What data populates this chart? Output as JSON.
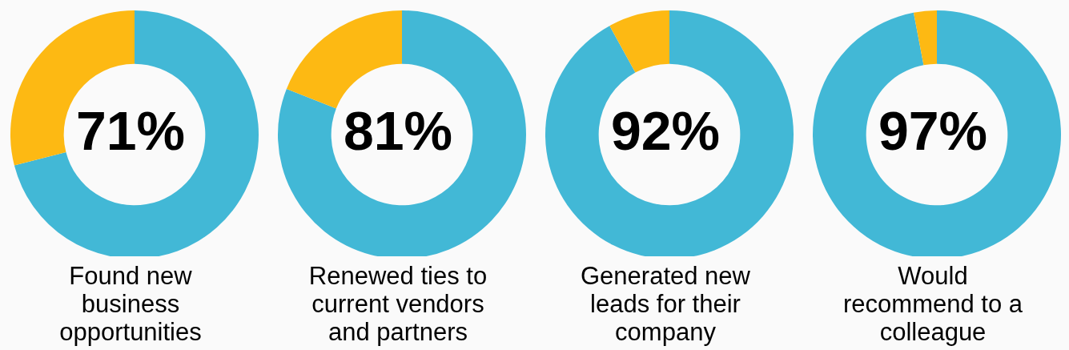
{
  "chart_data": [
    {
      "type": "donut",
      "title": "Found new business opportunities",
      "categories": [
        null,
        null
      ],
      "values": [
        71,
        29
      ],
      "colors": [
        "#42b8d6",
        "#fdb913"
      ],
      "annotations": [
        "71%"
      ]
    },
    {
      "type": "donut",
      "title": "Renewed ties to current vendors and partners",
      "categories": [
        null,
        null
      ],
      "values": [
        81,
        19
      ],
      "colors": [
        "#42b8d6",
        "#fdb913"
      ],
      "annotations": [
        "81%"
      ]
    },
    {
      "type": "donut",
      "title": "Generated new leads for their company",
      "categories": [
        null,
        null
      ],
      "values": [
        92,
        8
      ],
      "colors": [
        "#42b8d6",
        "#fdb913"
      ],
      "annotations": [
        "92%"
      ]
    },
    {
      "type": "donut",
      "title": "Would recommend to a colleague",
      "categories": [
        null,
        null
      ],
      "values": [
        97,
        3
      ],
      "colors": [
        "#42b8d6",
        "#fdb913"
      ],
      "annotations": [
        "97%"
      ]
    }
  ]
}
